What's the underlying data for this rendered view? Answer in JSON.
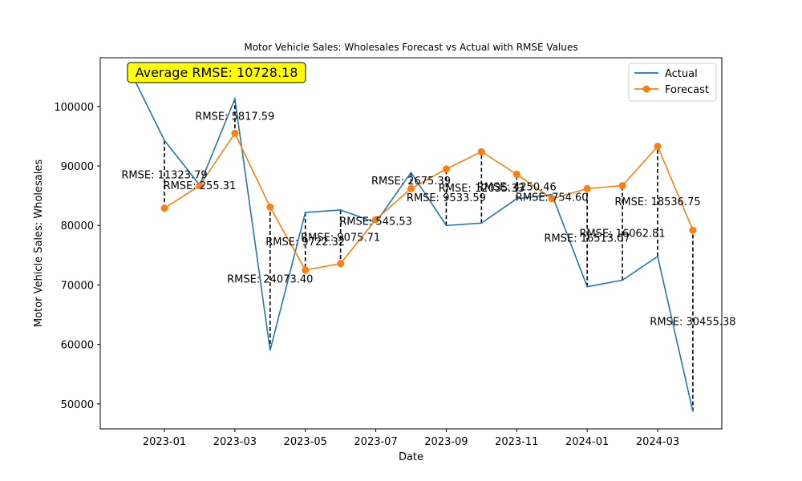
{
  "chart_data": {
    "type": "line",
    "title": "Motor Vehicle Sales: Wholesales Forecast vs Actual with RMSE Values",
    "xlabel": "Date",
    "ylabel": "Motor Vehicle Sales: Wholesales",
    "x_tick_labels": [
      "2023-01",
      "2023-03",
      "2023-05",
      "2023-07",
      "2023-09",
      "2023-11",
      "2024-01",
      "2024-03"
    ],
    "y_tick_labels": [
      "50000",
      "60000",
      "70000",
      "80000",
      "90000",
      "100000"
    ],
    "ylim": [
      45800,
      108200
    ],
    "grid": false,
    "legend_position": "top-right",
    "average_rmse_label": "Average RMSE: 10728.18",
    "actual_series": {
      "name": "Actual",
      "color": "#1f77b4",
      "dates": [
        "2022-12",
        "2023-01",
        "2023-02",
        "2023-03",
        "2023-04",
        "2023-05",
        "2023-06",
        "2023-07",
        "2023-08",
        "2023-09",
        "2023-10",
        "2023-11",
        "2023-12",
        "2024-01",
        "2024-02",
        "2024-03",
        "2024-04"
      ],
      "values": [
        106300,
        94300,
        86800,
        101300,
        59000,
        82200,
        82600,
        80500,
        88900,
        80000,
        80400,
        84500,
        85200,
        69700,
        70800,
        74800,
        48700
      ]
    },
    "forecast_series": {
      "name": "Forecast",
      "color": "#ff7f0e",
      "dates": [
        "2023-01",
        "2023-02",
        "2023-03",
        "2023-04",
        "2023-05",
        "2023-06",
        "2023-07",
        "2023-08",
        "2023-09",
        "2023-10",
        "2023-11",
        "2023-12",
        "2024-01",
        "2024-02",
        "2024-03",
        "2024-04"
      ],
      "values": [
        82900,
        86700,
        95500,
        83100,
        72500,
        73600,
        81000,
        86200,
        89500,
        92400,
        88600,
        84500,
        86200,
        86700,
        93300,
        79200
      ]
    },
    "rmse_labels": [
      "RMSE: 11323.79",
      "RMSE: 255.31",
      "RMSE: 5817.59",
      "RMSE: 24073.40",
      "RMSE: 9722.32",
      "RMSE: 9075.71",
      "RMSE: 545.53",
      "RMSE: 2675.39",
      "RMSE: 9533.59",
      "RMSE: 12035.33",
      "RMSE: 4250.46",
      "RMSE: 754.60",
      "RMSE: 16513.07",
      "RMSE: 16062.81",
      "RMSE: 18536.75",
      "RMSE: 30455.38"
    ]
  }
}
